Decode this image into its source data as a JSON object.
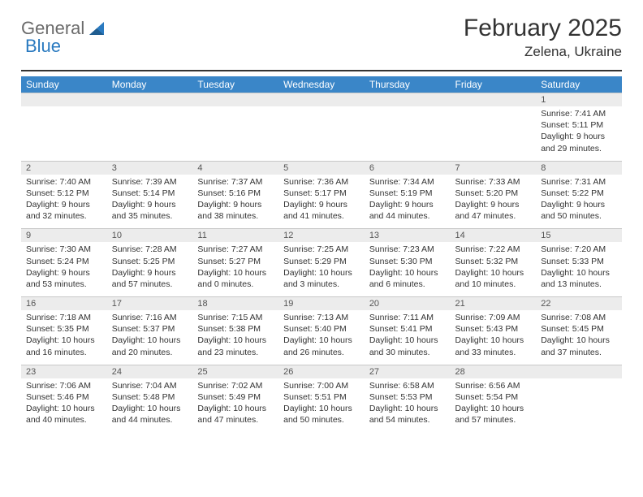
{
  "logo": {
    "text_general": "General",
    "text_blue": "Blue"
  },
  "header": {
    "month_title": "February 2025",
    "location": "Zelena, Ukraine"
  },
  "colors": {
    "header_bar": "#3a86c8",
    "header_text": "#ffffff",
    "daynum_bg": "#ececec",
    "daynum_border": "#c8c8c8",
    "rule": "#333333",
    "logo_gray": "#6a6a6a",
    "logo_blue": "#2a7ac0"
  },
  "weekdays": [
    "Sunday",
    "Monday",
    "Tuesday",
    "Wednesday",
    "Thursday",
    "Friday",
    "Saturday"
  ],
  "labels": {
    "sunrise": "Sunrise: ",
    "sunset": "Sunset: ",
    "daylight": "Daylight: "
  },
  "weeks": [
    {
      "nums": [
        "",
        "",
        "",
        "",
        "",
        "",
        "1"
      ],
      "cells": [
        null,
        null,
        null,
        null,
        null,
        null,
        {
          "sunrise": "7:41 AM",
          "sunset": "5:11 PM",
          "daylight": "9 hours and 29 minutes."
        }
      ]
    },
    {
      "nums": [
        "2",
        "3",
        "4",
        "5",
        "6",
        "7",
        "8"
      ],
      "cells": [
        {
          "sunrise": "7:40 AM",
          "sunset": "5:12 PM",
          "daylight": "9 hours and 32 minutes."
        },
        {
          "sunrise": "7:39 AM",
          "sunset": "5:14 PM",
          "daylight": "9 hours and 35 minutes."
        },
        {
          "sunrise": "7:37 AM",
          "sunset": "5:16 PM",
          "daylight": "9 hours and 38 minutes."
        },
        {
          "sunrise": "7:36 AM",
          "sunset": "5:17 PM",
          "daylight": "9 hours and 41 minutes."
        },
        {
          "sunrise": "7:34 AM",
          "sunset": "5:19 PM",
          "daylight": "9 hours and 44 minutes."
        },
        {
          "sunrise": "7:33 AM",
          "sunset": "5:20 PM",
          "daylight": "9 hours and 47 minutes."
        },
        {
          "sunrise": "7:31 AM",
          "sunset": "5:22 PM",
          "daylight": "9 hours and 50 minutes."
        }
      ]
    },
    {
      "nums": [
        "9",
        "10",
        "11",
        "12",
        "13",
        "14",
        "15"
      ],
      "cells": [
        {
          "sunrise": "7:30 AM",
          "sunset": "5:24 PM",
          "daylight": "9 hours and 53 minutes."
        },
        {
          "sunrise": "7:28 AM",
          "sunset": "5:25 PM",
          "daylight": "9 hours and 57 minutes."
        },
        {
          "sunrise": "7:27 AM",
          "sunset": "5:27 PM",
          "daylight": "10 hours and 0 minutes."
        },
        {
          "sunrise": "7:25 AM",
          "sunset": "5:29 PM",
          "daylight": "10 hours and 3 minutes."
        },
        {
          "sunrise": "7:23 AM",
          "sunset": "5:30 PM",
          "daylight": "10 hours and 6 minutes."
        },
        {
          "sunrise": "7:22 AM",
          "sunset": "5:32 PM",
          "daylight": "10 hours and 10 minutes."
        },
        {
          "sunrise": "7:20 AM",
          "sunset": "5:33 PM",
          "daylight": "10 hours and 13 minutes."
        }
      ]
    },
    {
      "nums": [
        "16",
        "17",
        "18",
        "19",
        "20",
        "21",
        "22"
      ],
      "cells": [
        {
          "sunrise": "7:18 AM",
          "sunset": "5:35 PM",
          "daylight": "10 hours and 16 minutes."
        },
        {
          "sunrise": "7:16 AM",
          "sunset": "5:37 PM",
          "daylight": "10 hours and 20 minutes."
        },
        {
          "sunrise": "7:15 AM",
          "sunset": "5:38 PM",
          "daylight": "10 hours and 23 minutes."
        },
        {
          "sunrise": "7:13 AM",
          "sunset": "5:40 PM",
          "daylight": "10 hours and 26 minutes."
        },
        {
          "sunrise": "7:11 AM",
          "sunset": "5:41 PM",
          "daylight": "10 hours and 30 minutes."
        },
        {
          "sunrise": "7:09 AM",
          "sunset": "5:43 PM",
          "daylight": "10 hours and 33 minutes."
        },
        {
          "sunrise": "7:08 AM",
          "sunset": "5:45 PM",
          "daylight": "10 hours and 37 minutes."
        }
      ]
    },
    {
      "nums": [
        "23",
        "24",
        "25",
        "26",
        "27",
        "28",
        ""
      ],
      "cells": [
        {
          "sunrise": "7:06 AM",
          "sunset": "5:46 PM",
          "daylight": "10 hours and 40 minutes."
        },
        {
          "sunrise": "7:04 AM",
          "sunset": "5:48 PM",
          "daylight": "10 hours and 44 minutes."
        },
        {
          "sunrise": "7:02 AM",
          "sunset": "5:49 PM",
          "daylight": "10 hours and 47 minutes."
        },
        {
          "sunrise": "7:00 AM",
          "sunset": "5:51 PM",
          "daylight": "10 hours and 50 minutes."
        },
        {
          "sunrise": "6:58 AM",
          "sunset": "5:53 PM",
          "daylight": "10 hours and 54 minutes."
        },
        {
          "sunrise": "6:56 AM",
          "sunset": "5:54 PM",
          "daylight": "10 hours and 57 minutes."
        },
        null
      ]
    }
  ]
}
